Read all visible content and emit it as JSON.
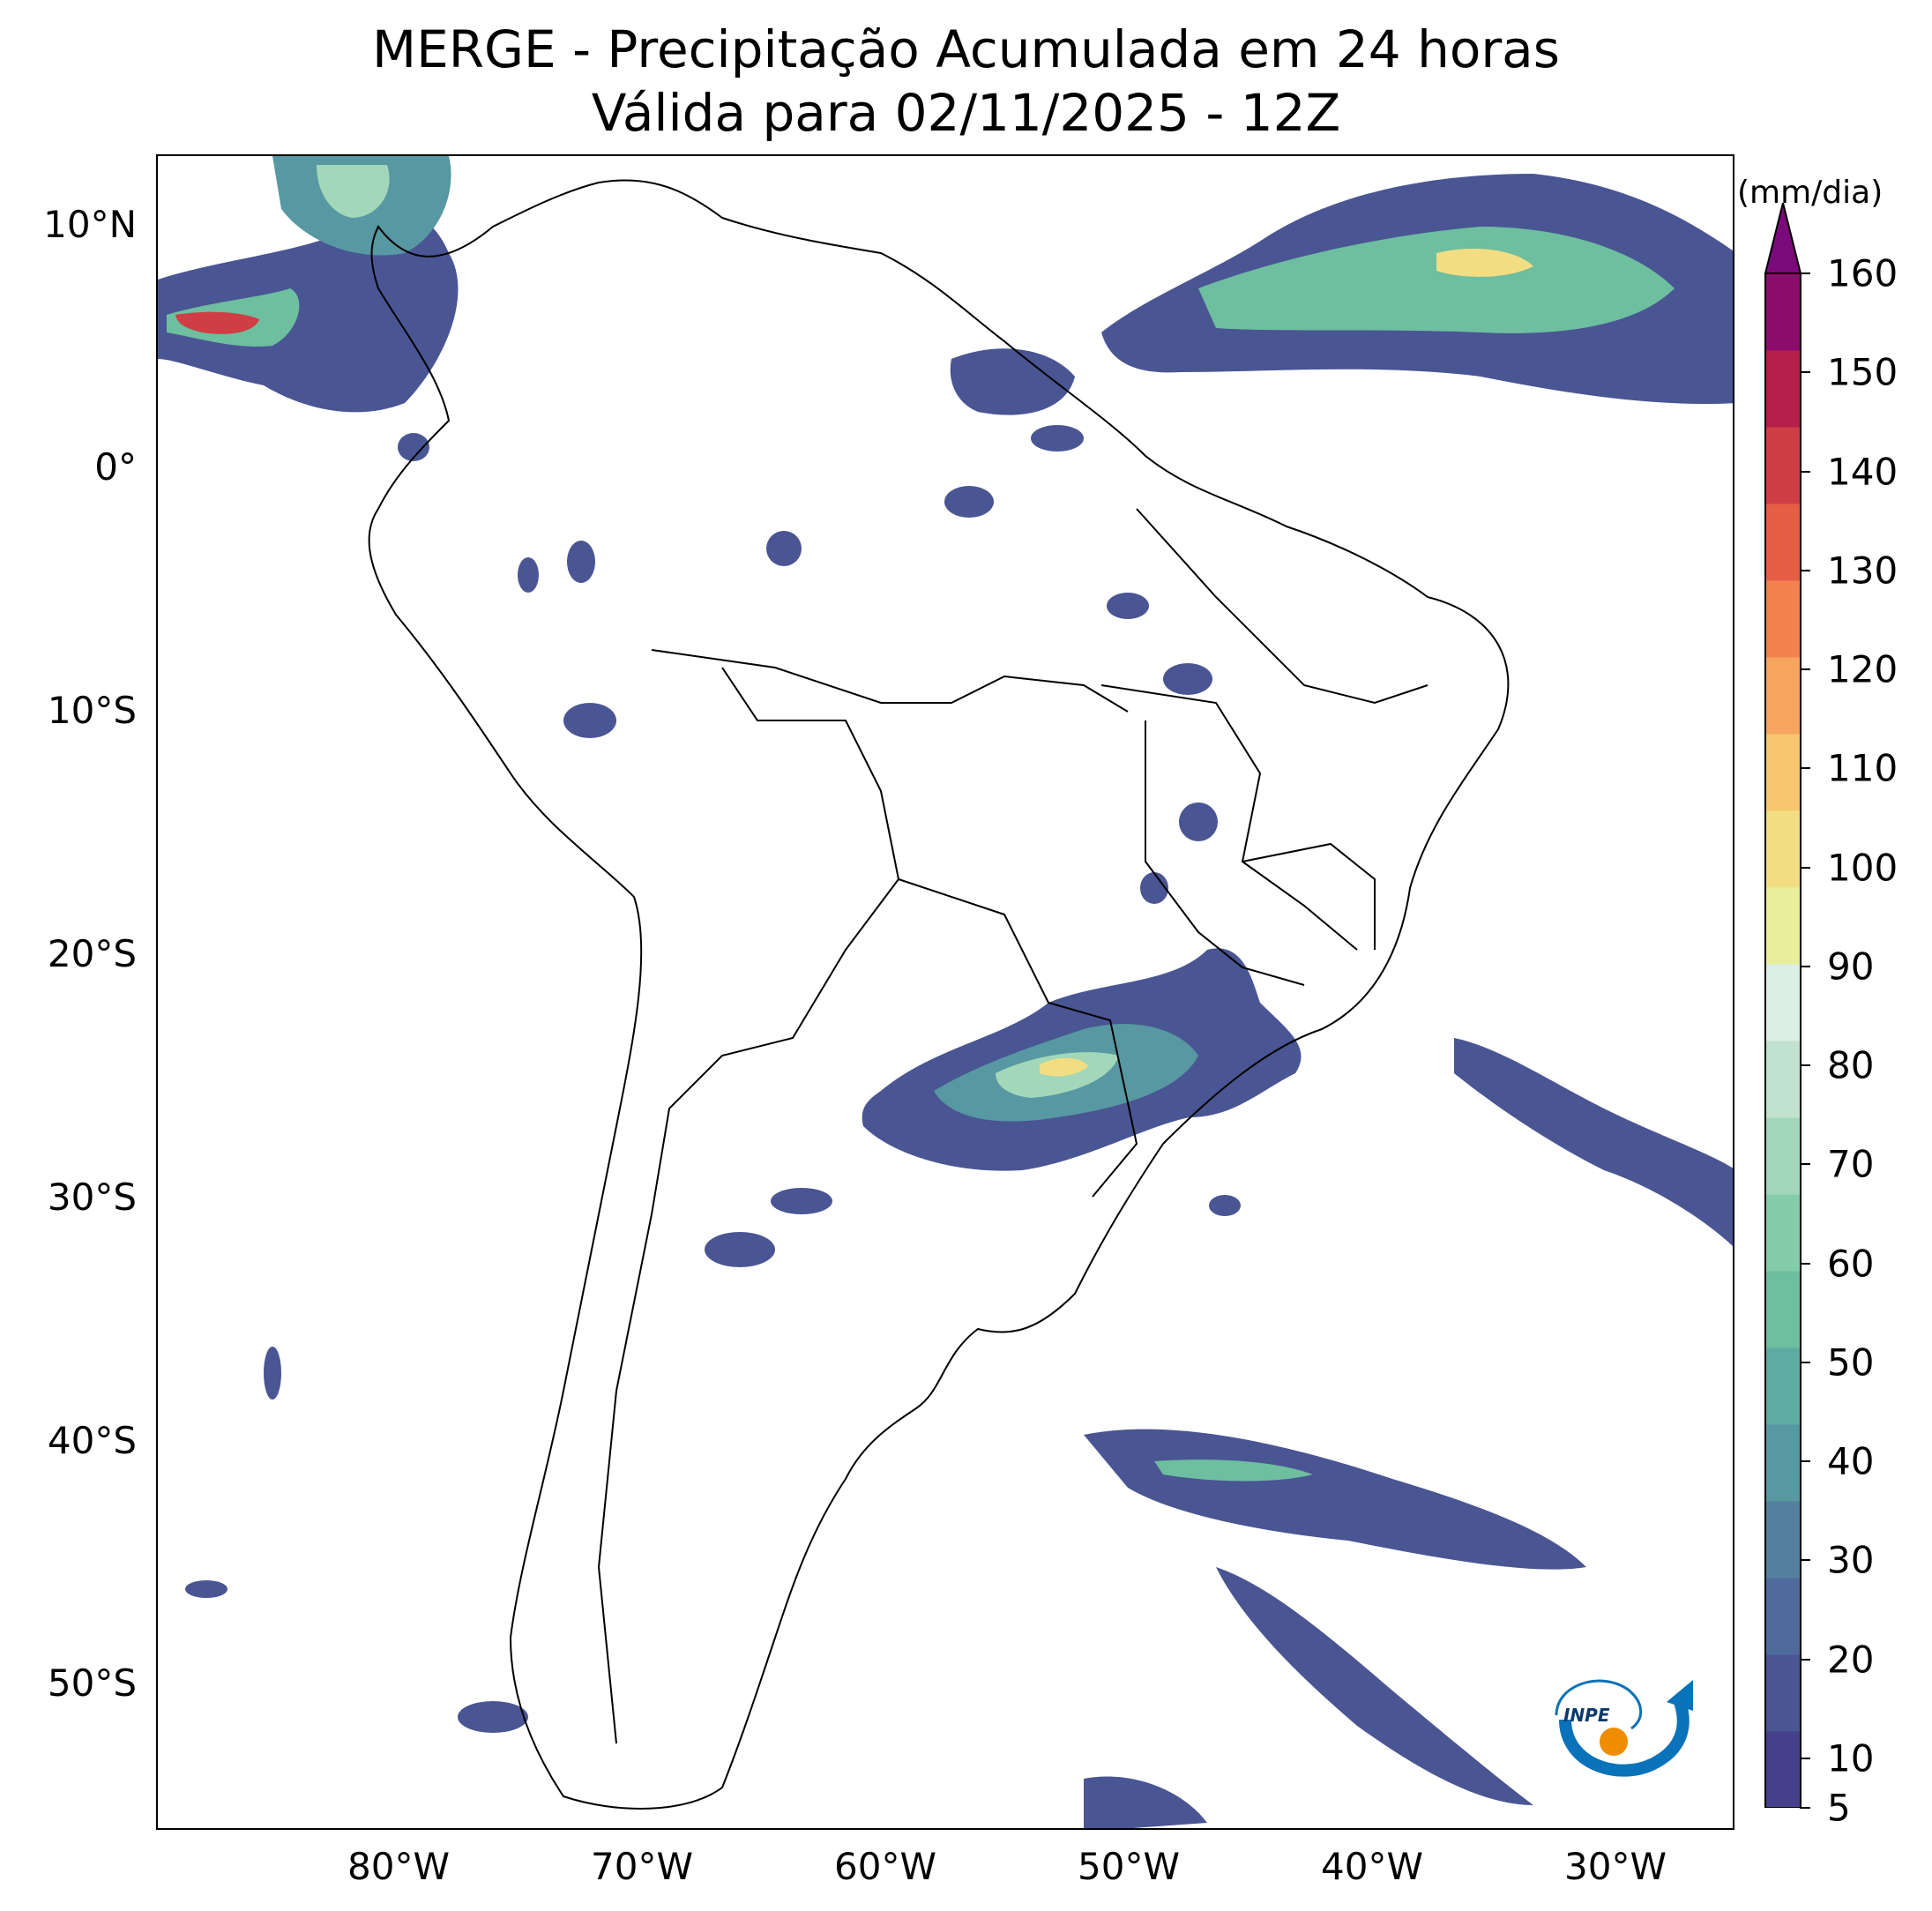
{
  "title": {
    "line1": "MERGE - Precipitação Acumulada em 24 horas",
    "line2": "Válida para 02/11/2025 - 12Z"
  },
  "map": {
    "lat_labels": [
      "10°N",
      "0°",
      "10°S",
      "20°S",
      "30°S",
      "40°S",
      "50°S"
    ],
    "lon_labels": [
      "80°W",
      "70°W",
      "60°W",
      "50°W",
      "40°W",
      "30°W"
    ],
    "features": {
      "precip_cores": [
        {
          "region": "Paraná / Paraguai",
          "value_mm": 90
        },
        {
          "region": "Pacífico equatorial oeste da Colômbia",
          "value_mm": 150
        },
        {
          "region": "Atlântico equatorial (ZCIT)",
          "value_mm": 90
        },
        {
          "region": "Atlântico Sul ~42°S",
          "value_mm": 60
        }
      ]
    }
  },
  "colorbar": {
    "units": "(mm/dia)",
    "ticks": [
      "5",
      "10",
      "20",
      "30",
      "40",
      "50",
      "60",
      "70",
      "80",
      "90",
      "100",
      "110",
      "120",
      "130",
      "140",
      "150",
      "160"
    ],
    "extend": "max",
    "colors": [
      "#463f8a",
      "#4a5593",
      "#4f6b9c",
      "#53809f",
      "#5798a2",
      "#5eaba1",
      "#6ebea0",
      "#85ccaa",
      "#a2d7b9",
      "#c1e2cf",
      "#dceee6",
      "#e8ef9a",
      "#f3dd82",
      "#f8c66f",
      "#f7a55e",
      "#f2814e",
      "#e65d45",
      "#d03e45",
      "#b4204a",
      "#8c0c6e"
    ],
    "over_color": "#7a0a7a"
  },
  "logo": {
    "text": "INPE",
    "colors": {
      "swoosh": "#0a72b8",
      "dot": "#f08c00"
    }
  }
}
